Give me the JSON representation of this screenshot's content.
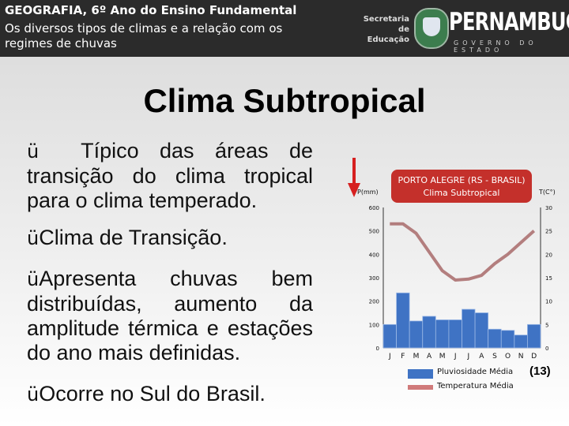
{
  "header": {
    "line1": "GEOGRAFIA, 6º Ano do Ensino Fundamental",
    "line2": "Os diversos tipos de climas e a relação com os",
    "line3": "regimes de chuvas",
    "secretaria_line1": "Secretaria de",
    "secretaria_line2": "Educação",
    "brand": "PERNAMBUCO",
    "brand_sub": "GOVERNO DO ESTADO"
  },
  "slide": {
    "title": "Clima Subtropical",
    "bullets": [
      "Típico das áreas de transição do clima tropical para o clima temperado.",
      "Clima de Transição.",
      "Apresenta chuvas bem distribuídas, aumento da amplitude térmica e estações do ano mais definidas.",
      "Ocorre no Sul do Brasil."
    ],
    "bullet_marker": "ü",
    "note": "(13)"
  },
  "colors": {
    "header_bg": "#2b2b2b",
    "bar": "#3f73c4",
    "bar_top": "#9bb8e6",
    "line": "#a86a6a",
    "chart_title_bg": "#c4302b",
    "arrow": "#d62020"
  },
  "chart_data": {
    "type": "bar",
    "title": "PORTO ALEGRE (RS - BRASIL)",
    "subtitle": "Clima Subtropical",
    "ylabel": "P(mm)",
    "y2label": "T(C°)",
    "categories": [
      "J",
      "F",
      "M",
      "A",
      "M",
      "J",
      "J",
      "A",
      "S",
      "O",
      "N",
      "D"
    ],
    "ylim": [
      0,
      600
    ],
    "y2lim": [
      0,
      30
    ],
    "yticks": [
      "0",
      "100",
      "200",
      "300",
      "400",
      "500",
      "600"
    ],
    "y2ticks": [
      "0",
      "5",
      "10",
      "15",
      "20",
      "25",
      "30"
    ],
    "series": [
      {
        "name": "Pluviosidade Média",
        "kind": "bar",
        "values": [
          100,
          235,
          115,
          135,
          120,
          120,
          165,
          150,
          80,
          75,
          55,
          100
        ]
      },
      {
        "name": "Temperatura Média",
        "kind": "line",
        "axis": "right",
        "values": [
          26.5,
          26.5,
          24.5,
          20.5,
          16.5,
          14.5,
          14.7,
          15.5,
          18,
          20,
          22.5,
          25
        ]
      }
    ],
    "legend_position": "bottom",
    "grid": false
  }
}
